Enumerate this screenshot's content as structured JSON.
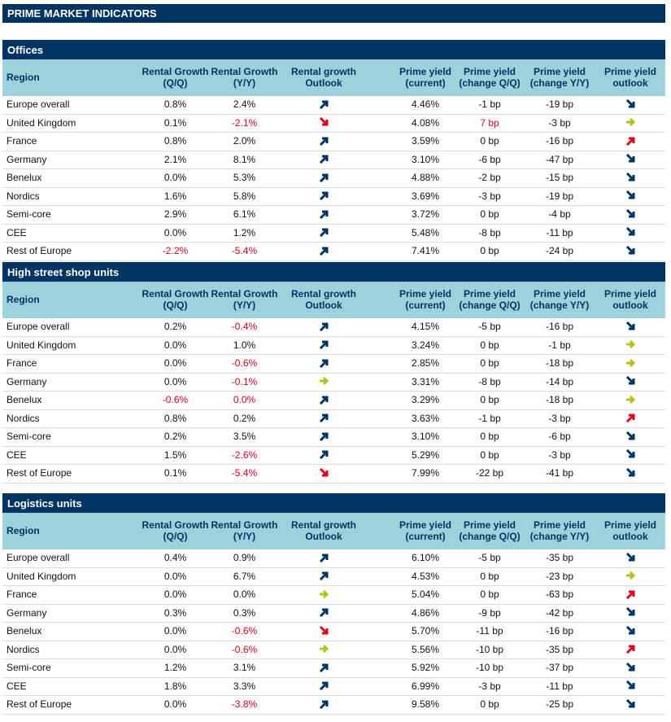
{
  "title": "PRIME MARKET INDICATORS",
  "colors": {
    "navy": "#003462",
    "header_blue": "#9dd2dc",
    "red": "#e3001b",
    "olive": "#b5c21a"
  },
  "columns": [
    "Region",
    "Rental Growth (Q/Q)",
    "Rental Growth (Y/Y)",
    "Rental growth Outlook",
    "Prime yield (current)",
    "Prime yield (change Q/Q)",
    "Prime yield (change Y/Y)",
    "Prime yield outlook"
  ],
  "sections": [
    {
      "name": "Offices",
      "rows": [
        {
          "region": "Europe overall",
          "qq": "0.8%",
          "yy": "2.4%",
          "rent_outlook": "up",
          "yield": "4.46%",
          "yqq": "-1 bp",
          "yyy": "-19 bp",
          "yield_outlook": "down",
          "red": []
        },
        {
          "region": "United Kingdom",
          "qq": "0.1%",
          "yy": "-2.1%",
          "rent_outlook": "down",
          "yield": "4.08%",
          "yqq": "7 bp",
          "yyy": "-3 bp",
          "yield_outlook": "flat",
          "red": [
            "yy",
            "yqq"
          ]
        },
        {
          "region": "France",
          "qq": "0.8%",
          "yy": "2.0%",
          "rent_outlook": "up",
          "yield": "3.59%",
          "yqq": "0 bp",
          "yyy": "-16 bp",
          "yield_outlook": "up",
          "red": []
        },
        {
          "region": "Germany",
          "qq": "2.1%",
          "yy": "8.1%",
          "rent_outlook": "up",
          "yield": "3.10%",
          "yqq": "-6 bp",
          "yyy": "-47 bp",
          "yield_outlook": "down",
          "red": []
        },
        {
          "region": "Benelux",
          "qq": "0.0%",
          "yy": "5.3%",
          "rent_outlook": "up",
          "yield": "4.88%",
          "yqq": "-2 bp",
          "yyy": "-15 bp",
          "yield_outlook": "down",
          "red": []
        },
        {
          "region": "Nordics",
          "qq": "1.6%",
          "yy": "5.8%",
          "rent_outlook": "up",
          "yield": "3.69%",
          "yqq": "-3 bp",
          "yyy": "-19 bp",
          "yield_outlook": "down",
          "red": []
        },
        {
          "region": "Semi-core",
          "qq": "2.9%",
          "yy": "6.1%",
          "rent_outlook": "up",
          "yield": "3.72%",
          "yqq": "0 bp",
          "yyy": "-4 bp",
          "yield_outlook": "down",
          "red": []
        },
        {
          "region": "CEE",
          "qq": "0.0%",
          "yy": "1.2%",
          "rent_outlook": "up",
          "yield": "5.48%",
          "yqq": "-8 bp",
          "yyy": "-11 bp",
          "yield_outlook": "down",
          "red": []
        },
        {
          "region": "Rest of Europe",
          "qq": "-2.2%",
          "yy": "-5.4%",
          "rent_outlook": "up",
          "yield": "7.41%",
          "yqq": "0 bp",
          "yyy": "-24 bp",
          "yield_outlook": "down",
          "red": [
            "qq",
            "yy"
          ]
        }
      ]
    },
    {
      "name": "High street shop units",
      "rows": [
        {
          "region": "Europe overall",
          "qq": "0.2%",
          "yy": "-0.4%",
          "rent_outlook": "up",
          "yield": "4.15%",
          "yqq": "-5 bp",
          "yyy": "-16 bp",
          "yield_outlook": "down",
          "red": [
            "yy"
          ]
        },
        {
          "region": "United Kingdom",
          "qq": "0.0%",
          "yy": "1.0%",
          "rent_outlook": "up",
          "yield": "3.24%",
          "yqq": "0 bp",
          "yyy": "-1 bp",
          "yield_outlook": "flat",
          "red": []
        },
        {
          "region": "France",
          "qq": "0.0%",
          "yy": "-0.6%",
          "rent_outlook": "up",
          "yield": "2.85%",
          "yqq": "0 bp",
          "yyy": "-18 bp",
          "yield_outlook": "flat",
          "red": [
            "yy"
          ]
        },
        {
          "region": "Germany",
          "qq": "0.0%",
          "yy": "-0.1%",
          "rent_outlook": "flat",
          "yield": "3.31%",
          "yqq": "-8 bp",
          "yyy": "-14 bp",
          "yield_outlook": "down",
          "red": [
            "yy"
          ]
        },
        {
          "region": "Benelux",
          "qq": "-0.6%",
          "yy": "0.0%",
          "rent_outlook": "up",
          "yield": "3.29%",
          "yqq": "0 bp",
          "yyy": "-18 bp",
          "yield_outlook": "flat",
          "red": [
            "qq",
            "yy"
          ]
        },
        {
          "region": "Nordics",
          "qq": "0.8%",
          "yy": "0.2%",
          "rent_outlook": "up",
          "yield": "3.63%",
          "yqq": "-1 bp",
          "yyy": "-3 bp",
          "yield_outlook": "up",
          "red": []
        },
        {
          "region": "Semi-core",
          "qq": "0.2%",
          "yy": "3.5%",
          "rent_outlook": "up",
          "yield": "3.10%",
          "yqq": "0 bp",
          "yyy": "-6 bp",
          "yield_outlook": "down",
          "red": []
        },
        {
          "region": "CEE",
          "qq": "1.5%",
          "yy": "-2.6%",
          "rent_outlook": "up",
          "yield": "5.29%",
          "yqq": "0 bp",
          "yyy": "-3 bp",
          "yield_outlook": "down",
          "red": [
            "yy"
          ]
        },
        {
          "region": "Rest of Europe",
          "qq": "0.1%",
          "yy": "-5.4%",
          "rent_outlook": "down",
          "yield": "7.99%",
          "yqq": "-22 bp",
          "yyy": "-41 bp",
          "yield_outlook": "down",
          "red": [
            "yy"
          ]
        }
      ]
    },
    {
      "name": "Logistics units",
      "rows": [
        {
          "region": "Europe overall",
          "qq": "0.4%",
          "yy": "0.9%",
          "rent_outlook": "up",
          "yield": "6.10%",
          "yqq": "-5 bp",
          "yyy": "-35 bp",
          "yield_outlook": "down",
          "red": []
        },
        {
          "region": "United Kingdom",
          "qq": "0.0%",
          "yy": "6.7%",
          "rent_outlook": "up",
          "yield": "4.53%",
          "yqq": "0 bp",
          "yyy": "-23 bp",
          "yield_outlook": "flat",
          "red": []
        },
        {
          "region": "France",
          "qq": "0.0%",
          "yy": "0.0%",
          "rent_outlook": "flat",
          "yield": "5.04%",
          "yqq": "0 bp",
          "yyy": "-63 bp",
          "yield_outlook": "up",
          "red": []
        },
        {
          "region": "Germany",
          "qq": "0.3%",
          "yy": "0.3%",
          "rent_outlook": "up",
          "yield": "4.86%",
          "yqq": "-9 bp",
          "yyy": "-42 bp",
          "yield_outlook": "down",
          "red": []
        },
        {
          "region": "Benelux",
          "qq": "0.0%",
          "yy": "-0.6%",
          "rent_outlook": "down",
          "yield": "5.70%",
          "yqq": "-11 bp",
          "yyy": "-16 bp",
          "yield_outlook": "down",
          "red": [
            "yy"
          ]
        },
        {
          "region": "Nordics",
          "qq": "0.0%",
          "yy": "-0.6%",
          "rent_outlook": "flat",
          "yield": "5.56%",
          "yqq": "-10 bp",
          "yyy": "-35 bp",
          "yield_outlook": "up",
          "red": [
            "yy"
          ]
        },
        {
          "region": "Semi-core",
          "qq": "1.2%",
          "yy": "3.1%",
          "rent_outlook": "up",
          "yield": "5.92%",
          "yqq": "-10 bp",
          "yyy": "-37 bp",
          "yield_outlook": "down",
          "red": []
        },
        {
          "region": "CEE",
          "qq": "1.8%",
          "yy": "3.3%",
          "rent_outlook": "up",
          "yield": "6.99%",
          "yqq": "-3 bp",
          "yyy": "-11 bp",
          "yield_outlook": "down",
          "red": []
        },
        {
          "region": "Rest of Europe",
          "qq": "0.0%",
          "yy": "-3.8%",
          "rent_outlook": "up",
          "yield": "9.58%",
          "yqq": "0 bp",
          "yyy": "-25 bp",
          "yield_outlook": "down",
          "red": [
            "yy"
          ]
        }
      ]
    }
  ]
}
